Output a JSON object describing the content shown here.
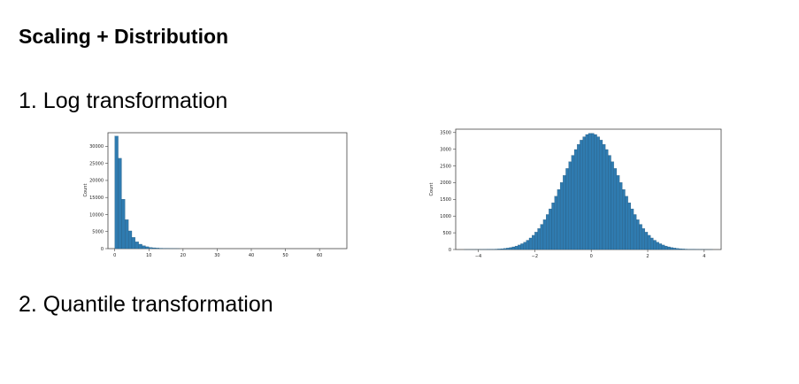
{
  "slide": {
    "title": "Scaling + Distribution",
    "section1": "1. Log transformation",
    "section2": "2. Quantile transformation"
  },
  "chart_data": [
    {
      "type": "bar",
      "title": "",
      "xlabel": "",
      "ylabel": "Count",
      "xlim": [
        -2,
        68
      ],
      "ylim": [
        0,
        34000
      ],
      "xticks": [
        0,
        10,
        20,
        30,
        40,
        50,
        60
      ],
      "yticks": [
        0,
        5000,
        10000,
        15000,
        20000,
        25000,
        30000
      ],
      "bar_color": "#2f7bb0",
      "bin_width": 1,
      "x": [
        0,
        1,
        2,
        3,
        4,
        5,
        6,
        7,
        8,
        9,
        10,
        11,
        12,
        13,
        14,
        15,
        16,
        17,
        18
      ],
      "values": [
        33000,
        26500,
        14500,
        8500,
        5200,
        3300,
        2000,
        1300,
        850,
        550,
        350,
        250,
        170,
        120,
        80,
        50,
        30,
        20,
        10
      ],
      "grid": false
    },
    {
      "type": "bar",
      "title": "",
      "xlabel": "",
      "ylabel": "Count",
      "xlim": [
        -4.8,
        4.6
      ],
      "ylim": [
        0,
        3600
      ],
      "xticks": [
        -4,
        -2,
        0,
        2,
        4
      ],
      "yticks": [
        0,
        500,
        1000,
        1500,
        2000,
        2500,
        3000,
        3500
      ],
      "bar_color": "#2f7bb0",
      "bin_start": -4.5,
      "bin_end": 4.3,
      "bin_width": 0.1,
      "peak_count": 3480,
      "center": 0,
      "std": 1.0,
      "grid": false
    }
  ]
}
